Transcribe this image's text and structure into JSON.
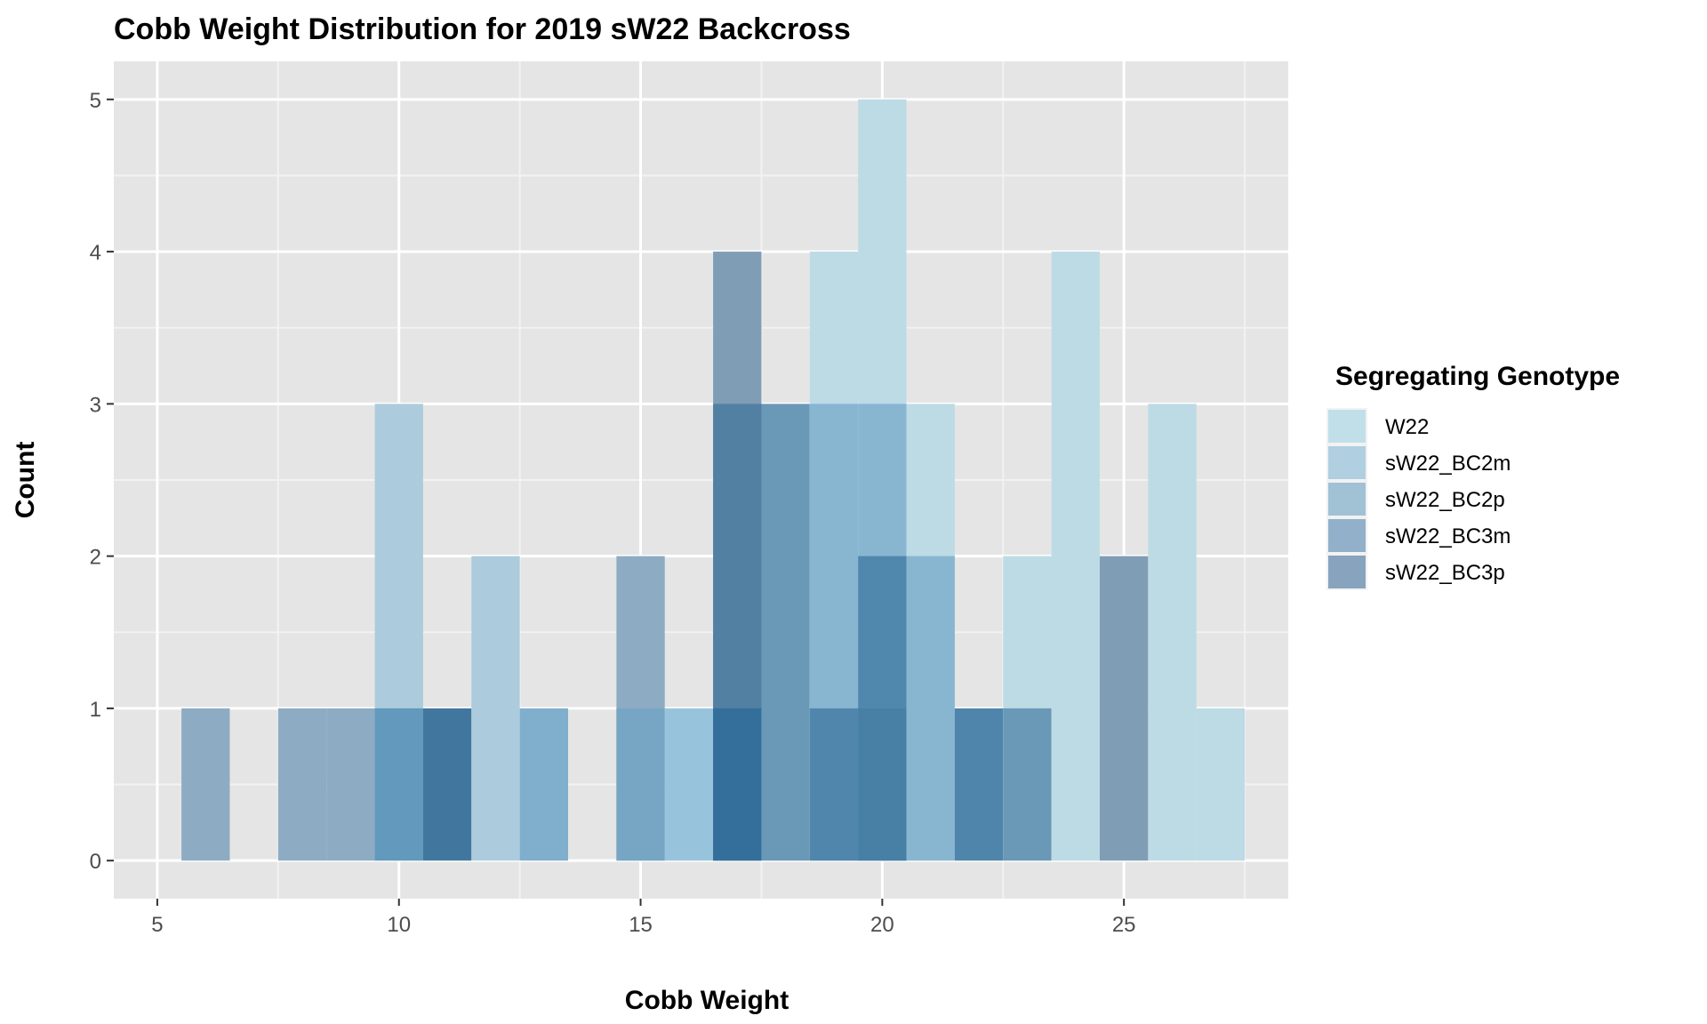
{
  "chart_data": {
    "type": "bar",
    "subtype": "histogram-overlapping",
    "title": "Cobb Weight Distribution for 2019 sW22 Backcross",
    "xlabel": "Cobb Weight",
    "ylabel": "Count",
    "xlim": [
      4.1,
      28.4
    ],
    "ylim": [
      -0.25,
      5.25
    ],
    "x_ticks": [
      5,
      10,
      15,
      20,
      25
    ],
    "y_ticks": [
      0,
      1,
      2,
      3,
      4,
      5
    ],
    "binwidth": 1,
    "grid": true,
    "panel_background": "#e5e5e5",
    "legend": {
      "title": "Segregating Genotype",
      "position": "right",
      "entries": [
        {
          "name": "W22",
          "color": "#c1dfe9"
        },
        {
          "name": "sW22_BC2m",
          "color": "#b0cfe0"
        },
        {
          "name": "sW22_BC2p",
          "color": "#a1c1d5"
        },
        {
          "name": "sW22_BC3m",
          "color": "#92b0c9"
        },
        {
          "name": "sW22_BC3p",
          "color": "#87a3bd"
        }
      ]
    },
    "bins": [
      {
        "x": 6,
        "layers": [
          {
            "count": 1,
            "color": "#8dacc4"
          }
        ]
      },
      {
        "x": 8,
        "layers": [
          {
            "count": 1,
            "color": "#8dacc4"
          }
        ]
      },
      {
        "x": 9,
        "layers": [
          {
            "count": 1,
            "color": "#8dacc4"
          }
        ]
      },
      {
        "x": 10,
        "layers": [
          {
            "count": 3,
            "color": "#acccdd"
          },
          {
            "count": 1,
            "color": "#6299bc"
          }
        ]
      },
      {
        "x": 11,
        "layers": [
          {
            "count": 1,
            "color": "#41779e"
          }
        ]
      },
      {
        "x": 12,
        "layers": [
          {
            "count": 2,
            "color": "#acccdd"
          }
        ]
      },
      {
        "x": 13,
        "layers": [
          {
            "count": 1,
            "color": "#80aecd"
          }
        ]
      },
      {
        "x": 15,
        "layers": [
          {
            "count": 2,
            "color": "#8dacc4"
          },
          {
            "count": 1,
            "color": "#77a5c4"
          }
        ]
      },
      {
        "x": 16,
        "layers": [
          {
            "count": 1,
            "color": "#97c4dc"
          }
        ]
      },
      {
        "x": 17,
        "layers": [
          {
            "count": 4,
            "color": "#809db6"
          },
          {
            "count": 3,
            "color": "#5280a3"
          },
          {
            "count": 1,
            "color": "#346f9b"
          }
        ]
      },
      {
        "x": 18,
        "layers": [
          {
            "count": 3,
            "color": "#6a98b7"
          }
        ]
      },
      {
        "x": 19,
        "layers": [
          {
            "count": 4,
            "color": "#bddbe5"
          },
          {
            "count": 3,
            "color": "#88b6d1"
          },
          {
            "count": 1,
            "color": "#5086ab"
          }
        ]
      },
      {
        "x": 20,
        "layers": [
          {
            "count": 5,
            "color": "#bddbe5"
          },
          {
            "count": 3,
            "color": "#88b6d1"
          },
          {
            "count": 2,
            "color": "#5087ac"
          },
          {
            "count": 1,
            "color": "#477fa5"
          }
        ]
      },
      {
        "x": 21,
        "layers": [
          {
            "count": 3,
            "color": "#bddbe5"
          },
          {
            "count": 2,
            "color": "#88b6d1"
          }
        ]
      },
      {
        "x": 22,
        "layers": [
          {
            "count": 1,
            "color": "#4f85aa"
          }
        ]
      },
      {
        "x": 23,
        "layers": [
          {
            "count": 2,
            "color": "#bddbe5"
          },
          {
            "count": 1,
            "color": "#6a98b7"
          }
        ]
      },
      {
        "x": 24,
        "layers": [
          {
            "count": 4,
            "color": "#bddbe5"
          }
        ]
      },
      {
        "x": 25,
        "layers": [
          {
            "count": 2,
            "color": "#809db6"
          }
        ]
      },
      {
        "x": 26,
        "layers": [
          {
            "count": 3,
            "color": "#bddbe5"
          }
        ]
      },
      {
        "x": 27,
        "layers": [
          {
            "count": 1,
            "color": "#bddbe5"
          }
        ]
      }
    ]
  }
}
